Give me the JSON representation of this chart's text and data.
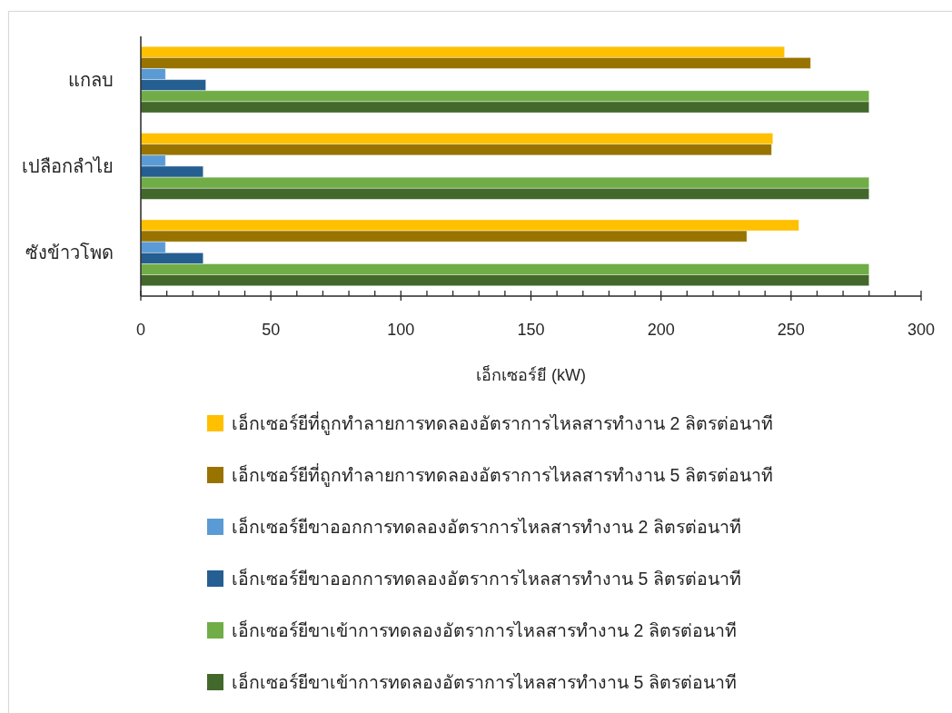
{
  "chart_data": {
    "type": "bar",
    "orientation": "horizontal",
    "xlabel": "เอ็กเซอร์ยี (kW)",
    "categories": [
      "แกลบ",
      "เปลือกลำไย",
      "ซังข้าวโพด"
    ],
    "series": [
      {
        "name": "เอ็กเซอร์ยีที่ถูกทำลายการทดลองอัตราการไหลสารทำงาน 2 ลิตรต่อนาที",
        "color": "#ffc000",
        "values": [
          247.5,
          243,
          253
        ]
      },
      {
        "name": "เอ็กเซอร์ยีที่ถูกทำลายการทดลองอัตราการไหลสารทำงาน 5 ลิตรต่อนาที",
        "color": "#997300",
        "values": [
          257.5,
          242.5,
          233
        ]
      },
      {
        "name": "เอ็กเซอร์ยีขาออกการทดลองอัตราการไหลสารทำงาน 2 ลิตรต่อนาที",
        "color": "#5b9bd5",
        "values": [
          9.5,
          9.5,
          9.5
        ]
      },
      {
        "name": "เอ็กเซอร์ยีขาออกการทดลองอัตราการไหลสารทำงาน 5 ลิตรต่อนาที",
        "color": "#255e91",
        "values": [
          25,
          24,
          24
        ]
      },
      {
        "name": "เอ็กเซอร์ยีขาเข้าการทดลองอัตราการไหลสารทำงาน 2 ลิตรต่อนาที",
        "color": "#70ad47",
        "values": [
          280,
          280,
          280
        ]
      },
      {
        "name": "เอ็กเซอร์ยีขาเข้าการทดลองอัตราการไหลสารทำงาน 5 ลิตรต่อนาที",
        "color": "#43682b",
        "values": [
          280,
          280,
          280
        ]
      }
    ],
    "xlim": [
      0,
      300
    ],
    "xticks": [
      0,
      {
        "value": 10,
        "label": null
      },
      {
        "value": 20,
        "label": null
      },
      {
        "value": 30,
        "label": null
      },
      {
        "value": 40,
        "label": null
      },
      50,
      {
        "value": 60,
        "label": null
      },
      {
        "value": 70,
        "label": null
      },
      {
        "value": 80,
        "label": null
      },
      {
        "value": 90,
        "label": null
      },
      100,
      {
        "value": 110,
        "label": null
      },
      {
        "value": 120,
        "label": null
      },
      {
        "value": 130,
        "label": null
      },
      {
        "value": 140,
        "label": null
      },
      150,
      {
        "value": 160,
        "label": null
      },
      {
        "value": 170,
        "label": null
      },
      {
        "value": 180,
        "label": null
      },
      {
        "value": 190,
        "label": null
      },
      200,
      {
        "value": 210,
        "label": null
      },
      {
        "value": 220,
        "label": null
      },
      {
        "value": 230,
        "label": null
      },
      {
        "value": 240,
        "label": null
      },
      250,
      {
        "value": 260,
        "label": null
      },
      {
        "value": 270,
        "label": null
      },
      {
        "value": 280,
        "label": null
      },
      {
        "value": 290,
        "label": null
      },
      300
    ],
    "legend": "bottom"
  }
}
